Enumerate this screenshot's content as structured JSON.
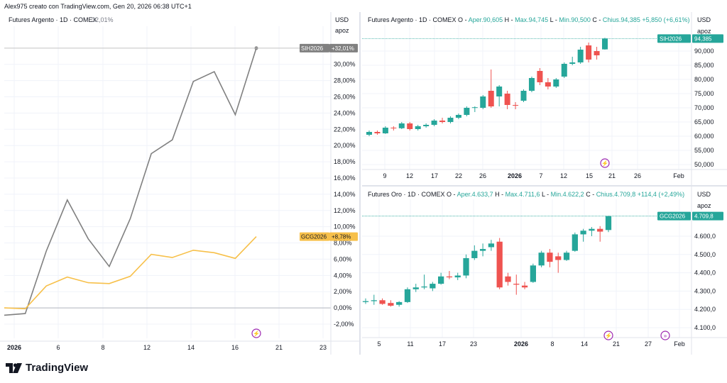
{
  "header": {
    "text": "Alex975 creato con TradingView.com, Gen 20, 2026 06:38 UTC+1"
  },
  "footer": {
    "brand": "TradingView"
  },
  "colors": {
    "up": "#26a69a",
    "down": "#ef5350",
    "silver_line": "#808080",
    "gold_line": "#f7c04a",
    "grid": "#f0f3fa",
    "axis_text": "#131722",
    "event_icon": "#9c27b0"
  },
  "chart_data": [
    {
      "id": "compare",
      "type": "line",
      "title": "Futures Argento · 1D · COMEX",
      "title_value": "32,01%",
      "currency": "USD",
      "unit_label": "apoz",
      "y_ticks": [
        "32,00%",
        "30,00%",
        "28,00%",
        "26,00%",
        "24,00%",
        "22,00%",
        "20,00%",
        "18,00%",
        "16,00%",
        "14,00%",
        "12,00%",
        "10,00%",
        "8,00%",
        "6,00%",
        "4,00%",
        "2,00%",
        "0,00%",
        "-2,00%"
      ],
      "ylim": [
        -3,
        33
      ],
      "x_ticks": [
        "2026",
        "6",
        "8",
        "12",
        "14",
        "16",
        "21",
        "23"
      ],
      "series": [
        {
          "name": "SIH2026",
          "label_value": "+32,01%",
          "color": "#808080",
          "values": [
            -0.9,
            -0.7,
            7.0,
            13.3,
            8.5,
            5.1,
            11.0,
            19.0,
            20.7,
            27.9,
            29.1,
            23.8,
            32.0
          ]
        },
        {
          "name": "GCG2026",
          "label_value": "+8,78%",
          "color": "#f7c04a",
          "values": [
            0.0,
            -0.1,
            2.7,
            3.8,
            3.1,
            3.0,
            3.9,
            6.6,
            6.2,
            7.1,
            6.8,
            6.1,
            8.78
          ]
        }
      ]
    },
    {
      "id": "silver",
      "type": "candlestick",
      "title": "Futures Argento · 1D · COMEX",
      "ohlc_line": {
        "o_label": "O",
        "o": "Aper.90,605",
        "h_label": "H",
        "h": "Max.94,745",
        "l_label": "L",
        "l": "Min.90,500",
        "c_label": "C",
        "c": "Chius.94,385",
        "chg": "+5,850 (+6,61%)"
      },
      "currency": "USD",
      "unit_label": "apoz",
      "symbol": "SIH2026",
      "last_value": "94,385",
      "y_ticks": [
        "90,000",
        "85,000",
        "80,000",
        "75,000",
        "70,000",
        "65,000",
        "60,000",
        "55,000",
        "50,000"
      ],
      "ylim": [
        48,
        97
      ],
      "x_ticks": [
        "9",
        "12",
        "17",
        "22",
        "26",
        "2026",
        "7",
        "12",
        "15",
        "21",
        "26",
        "Feb"
      ],
      "candles": [
        [
          60.5,
          62.0,
          60.0,
          61.5
        ],
        [
          61.5,
          62.0,
          60.5,
          61.0
        ],
        [
          61.0,
          63.5,
          60.8,
          63.0
        ],
        [
          63.0,
          63.5,
          62.0,
          62.8
        ],
        [
          62.8,
          65.0,
          62.5,
          64.5
        ],
        [
          64.5,
          65.0,
          62.0,
          62.5
        ],
        [
          62.5,
          64.0,
          62.0,
          63.5
        ],
        [
          63.5,
          64.5,
          63.0,
          64.0
        ],
        [
          64.0,
          66.0,
          63.5,
          65.5
        ],
        [
          65.5,
          66.5,
          64.5,
          65.0
        ],
        [
          65.0,
          67.0,
          64.5,
          66.5
        ],
        [
          66.5,
          68.0,
          66.0,
          67.5
        ],
        [
          67.5,
          70.5,
          67.0,
          70.0
        ],
        [
          70.0,
          70.5,
          68.5,
          70.2
        ],
        [
          70.0,
          74.5,
          69.5,
          74.0
        ],
        [
          76.0,
          83.5,
          70.0,
          70.5
        ],
        [
          74.0,
          78.0,
          70.5,
          77.5
        ],
        [
          75.0,
          76.0,
          69.5,
          71.0
        ],
        [
          71.0,
          72.0,
          69.5,
          70.8
        ],
        [
          72.5,
          76.5,
          72.0,
          76.0
        ],
        [
          76.0,
          81.0,
          75.5,
          80.5
        ],
        [
          83.0,
          84.0,
          78.0,
          79.0
        ],
        [
          79.0,
          80.5,
          76.5,
          77.5
        ],
        [
          77.5,
          80.5,
          77.0,
          80.0
        ],
        [
          81.0,
          86.0,
          80.5,
          85.5
        ],
        [
          85.5,
          88.0,
          85.0,
          86.0
        ],
        [
          86.0,
          91.5,
          85.5,
          90.5
        ],
        [
          92.0,
          93.0,
          86.0,
          87.0
        ],
        [
          90.0,
          91.5,
          87.0,
          88.5
        ],
        [
          90.6,
          94.7,
          90.5,
          94.4
        ]
      ]
    },
    {
      "id": "gold",
      "type": "candlestick",
      "title": "Futures Oro · 1D · COMEX",
      "ohlc_line": {
        "o_label": "O",
        "o": "Aper.4.633,7",
        "h_label": "H",
        "h": "Max.4.711,6",
        "l_label": "L",
        "l": "Min.4.622,2",
        "c_label": "C",
        "c": "Chius.4.709,8",
        "chg": "+114,4 (+2,49%)"
      },
      "currency": "USD",
      "unit_label": "apoz",
      "symbol": "GCG2026",
      "last_value": "4.709,8",
      "y_ticks": [
        "4.600,0",
        "4.500,0",
        "4.400,0",
        "4.300,0",
        "4.200,0",
        "4.100,0"
      ],
      "ylim": [
        4060,
        4760
      ],
      "x_ticks": [
        "5",
        "11",
        "17",
        "23",
        "2026",
        "8",
        "14",
        "21",
        "27",
        "Feb"
      ],
      "candles": [
        [
          4240,
          4260,
          4230,
          4245
        ],
        [
          4245,
          4280,
          4225,
          4250
        ],
        [
          4250,
          4260,
          4225,
          4230
        ],
        [
          4235,
          4250,
          4215,
          4220
        ],
        [
          4225,
          4245,
          4215,
          4240
        ],
        [
          4240,
          4320,
          4235,
          4310
        ],
        [
          4310,
          4340,
          4295,
          4320
        ],
        [
          4320,
          4390,
          4310,
          4325
        ],
        [
          4315,
          4350,
          4300,
          4340
        ],
        [
          4340,
          4400,
          4335,
          4380
        ],
        [
          4380,
          4410,
          4365,
          4375
        ],
        [
          4375,
          4400,
          4360,
          4385
        ],
        [
          4385,
          4500,
          4370,
          4480
        ],
        [
          4480,
          4550,
          4470,
          4520
        ],
        [
          4520,
          4560,
          4490,
          4530
        ],
        [
          4540,
          4580,
          4520,
          4560
        ],
        [
          4570,
          4590,
          4310,
          4320
        ],
        [
          4380,
          4400,
          4330,
          4350
        ],
        [
          4340,
          4390,
          4280,
          4335
        ],
        [
          4330,
          4350,
          4310,
          4320
        ],
        [
          4350,
          4450,
          4345,
          4440
        ],
        [
          4440,
          4520,
          4430,
          4510
        ],
        [
          4510,
          4530,
          4430,
          4460
        ],
        [
          4490,
          4510,
          4400,
          4470
        ],
        [
          4470,
          4520,
          4465,
          4510
        ],
        [
          4520,
          4620,
          4515,
          4610
        ],
        [
          4610,
          4640,
          4570,
          4630
        ],
        [
          4630,
          4650,
          4600,
          4640
        ],
        [
          4640,
          4655,
          4570,
          4625
        ],
        [
          4633.7,
          4711.6,
          4622.2,
          4709.8
        ]
      ]
    }
  ]
}
